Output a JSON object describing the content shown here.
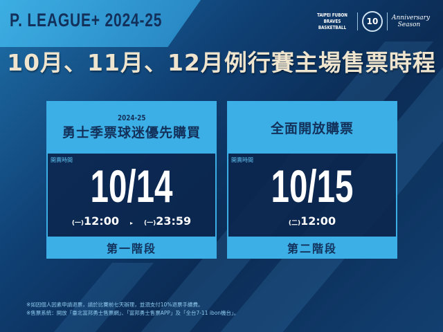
{
  "header": {
    "league": "P. LEAGUE+ 2024-25",
    "brand_text": "TAIPEI FUBON BRAVES BASKETBALL",
    "anniversary_number": "10",
    "anniversary_text": "Anniversary Season"
  },
  "title": "10月、11月、12月例行賽主場售票時程",
  "cards": [
    {
      "season": "2024-25",
      "title": "勇士季票球迷優先購買",
      "sale_label": "開賣時間",
      "date": "10/14",
      "start_day": "(一)",
      "start_time": "12:00",
      "arrow": "▸",
      "end_day": "(一)",
      "end_time": "23:59",
      "phase": "第一階段"
    },
    {
      "season": "",
      "title": "全面開放購票",
      "sale_label": "開賣時間",
      "date": "10/15",
      "start_day": "(二)",
      "start_time": "12:00",
      "phase": "第二階段"
    }
  ],
  "notes": [
    "※如因個人因素申請退票，請於比賽前七天辦理，並須支付10%退票手續費。",
    "※售票系統：開放「臺北富邦勇士售票網」、「富邦勇士售票APP」及「全台7-11 ibon機台」。"
  ],
  "colors": {
    "accent": "#3cb0e6",
    "navy": "#12305a",
    "title": "#efe5cf"
  }
}
